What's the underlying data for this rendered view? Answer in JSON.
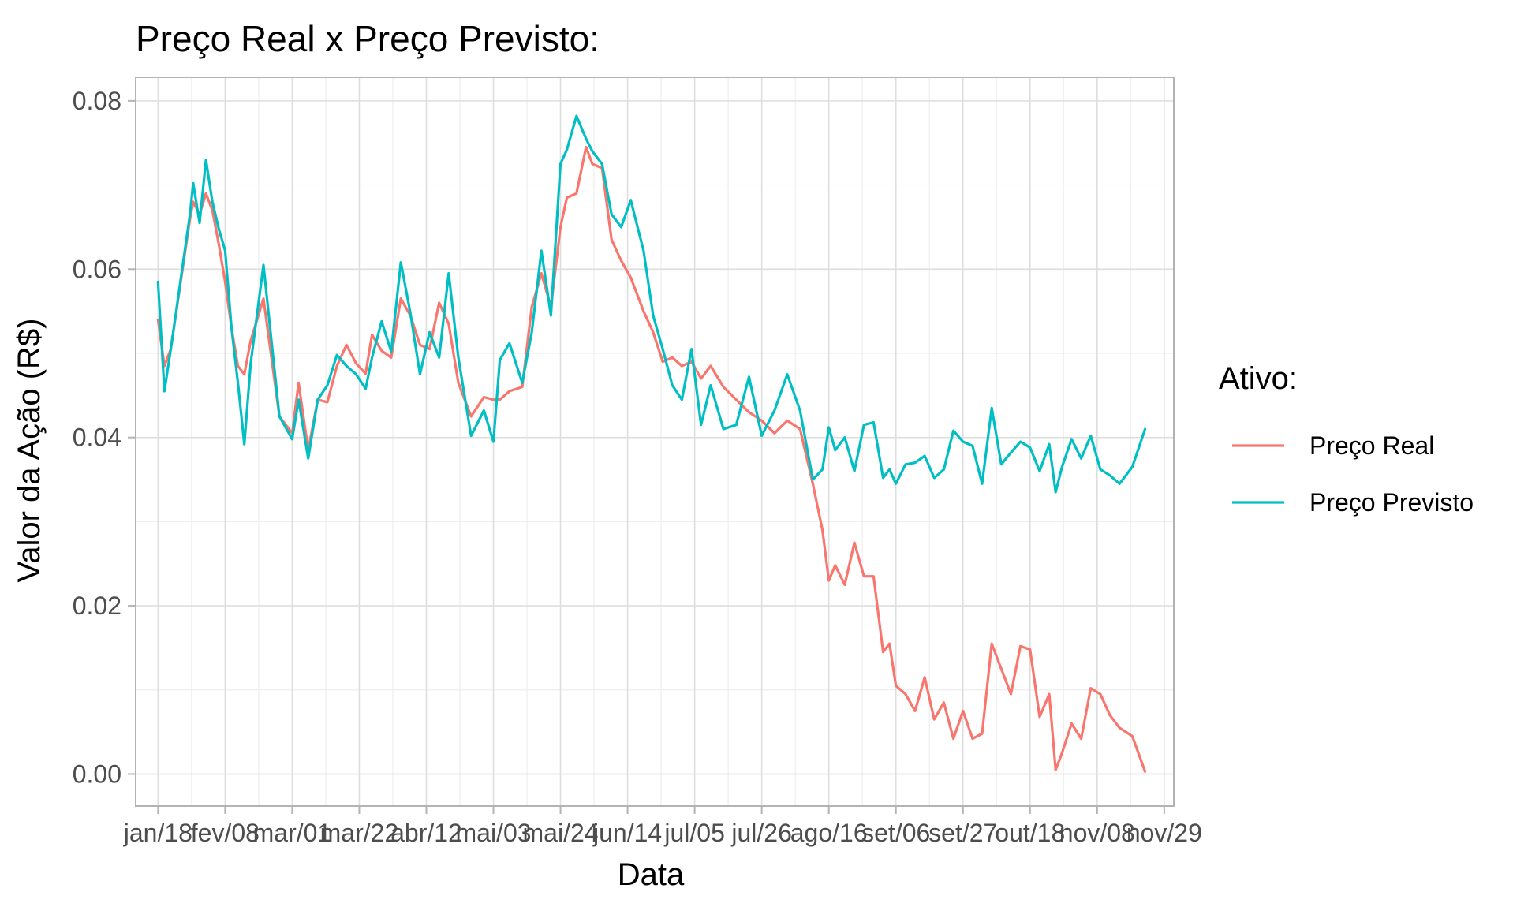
{
  "chart_data": {
    "type": "line",
    "title": "Preço Real x Preço Previsto:",
    "xlabel": "Data",
    "ylabel": "Valor da Ação (R$)",
    "x_ticks": [
      "jan/18",
      "fev/08",
      "mar/01",
      "mar/22",
      "abr/12",
      "mai/03",
      "mai/24",
      "jun/14",
      "jul/05",
      "jul/26",
      "ago/16",
      "set/06",
      "set/27",
      "out/18",
      "nov/08",
      "nov/29"
    ],
    "y_ticks": [
      "0.00",
      "0.02",
      "0.04",
      "0.06",
      "0.08"
    ],
    "xlim": [
      "2021-01-11",
      "2021-12-02"
    ],
    "ylim": [
      -0.0038,
      0.0828
    ],
    "grid": true,
    "legend": {
      "title": "Ativo:",
      "position": "right"
    },
    "colors": {
      "real": "#F8766D",
      "previsto": "#00BFC4"
    },
    "x": [
      "2021-01-18",
      "2021-01-20",
      "2021-01-22",
      "2021-01-28",
      "2021-01-29",
      "2021-01-31",
      "2021-02-02",
      "2021-02-03",
      "2021-02-04",
      "2021-02-06",
      "2021-02-08",
      "2021-02-10",
      "2021-02-12",
      "2021-02-14",
      "2021-02-16",
      "2021-02-20",
      "2021-02-25",
      "2021-03-01",
      "2021-03-03",
      "2021-03-06",
      "2021-03-09",
      "2021-03-12",
      "2021-03-15",
      "2021-03-18",
      "2021-03-21",
      "2021-03-24",
      "2021-03-26",
      "2021-03-29",
      "2021-04-01",
      "2021-04-04",
      "2021-04-07",
      "2021-04-10",
      "2021-04-13",
      "2021-04-16",
      "2021-04-19",
      "2021-04-22",
      "2021-04-26",
      "2021-04-30",
      "2021-05-03",
      "2021-05-05",
      "2021-05-08",
      "2021-05-12",
      "2021-05-15",
      "2021-05-18",
      "2021-05-21",
      "2021-05-24",
      "2021-05-26",
      "2021-05-29",
      "2021-06-01",
      "2021-06-03",
      "2021-06-06",
      "2021-06-09",
      "2021-06-12",
      "2021-06-15",
      "2021-06-19",
      "2021-06-22",
      "2021-06-25",
      "2021-06-28",
      "2021-07-01",
      "2021-07-04",
      "2021-07-07",
      "2021-07-10",
      "2021-07-14",
      "2021-07-18",
      "2021-07-22",
      "2021-07-26",
      "2021-07-30",
      "2021-08-03",
      "2021-08-07",
      "2021-08-11",
      "2021-08-14",
      "2021-08-16",
      "2021-08-18",
      "2021-08-21",
      "2021-08-24",
      "2021-08-27",
      "2021-08-30",
      "2021-09-02",
      "2021-09-04",
      "2021-09-06",
      "2021-09-09",
      "2021-09-12",
      "2021-09-15",
      "2021-09-18",
      "2021-09-21",
      "2021-09-24",
      "2021-09-27",
      "2021-09-30",
      "2021-10-03",
      "2021-10-06",
      "2021-10-09",
      "2021-10-12",
      "2021-10-15",
      "2021-10-18",
      "2021-10-21",
      "2021-10-24",
      "2021-10-26",
      "2021-10-28",
      "2021-10-31",
      "2021-11-03",
      "2021-11-06",
      "2021-11-09",
      "2021-11-12",
      "2021-11-15",
      "2021-11-19",
      "2021-11-23"
    ],
    "series": [
      {
        "name": "Preço Real",
        "values": [
          0.054,
          0.0485,
          0.0505,
          0.066,
          0.068,
          0.0665,
          0.069,
          0.068,
          0.067,
          0.063,
          0.0585,
          0.053,
          0.0485,
          0.0475,
          0.0515,
          0.0565,
          0.0425,
          0.0405,
          0.0465,
          0.0385,
          0.0445,
          0.0442,
          0.0485,
          0.051,
          0.0488,
          0.0476,
          0.0522,
          0.0503,
          0.0495,
          0.0565,
          0.0545,
          0.051,
          0.0505,
          0.056,
          0.0535,
          0.0465,
          0.0425,
          0.0448,
          0.0445,
          0.0445,
          0.0455,
          0.046,
          0.0555,
          0.0595,
          0.0555,
          0.065,
          0.0685,
          0.069,
          0.0745,
          0.0725,
          0.072,
          0.0635,
          0.061,
          0.059,
          0.055,
          0.0525,
          0.049,
          0.0495,
          0.0485,
          0.049,
          0.047,
          0.0485,
          0.046,
          0.0445,
          0.043,
          0.042,
          0.0405,
          0.042,
          0.041,
          0.0345,
          0.029,
          0.023,
          0.0248,
          0.0225,
          0.0275,
          0.0235,
          0.0235,
          0.0145,
          0.0155,
          0.0105,
          0.0095,
          0.0075,
          0.0115,
          0.0065,
          0.0085,
          0.0042,
          0.0075,
          0.0042,
          0.0048,
          0.0155,
          0.0125,
          0.0095,
          0.0152,
          0.0148,
          0.0068,
          0.0095,
          0.0005,
          0.0025,
          0.006,
          0.0042,
          0.0102,
          0.0095,
          0.007,
          0.0055,
          0.0045,
          0.0003
        ]
      },
      {
        "name": "Preço Previsto",
        "values": [
          0.0585,
          0.0455,
          0.0505,
          0.0665,
          0.0702,
          0.0655,
          0.073,
          0.0705,
          0.068,
          0.0648,
          0.0622,
          0.053,
          0.0465,
          0.0392,
          0.0488,
          0.0605,
          0.0425,
          0.0398,
          0.0445,
          0.0375,
          0.0445,
          0.0462,
          0.0498,
          0.0485,
          0.0475,
          0.0458,
          0.0495,
          0.0538,
          0.0502,
          0.0608,
          0.0548,
          0.0475,
          0.0525,
          0.0495,
          0.0595,
          0.0495,
          0.0402,
          0.0432,
          0.0395,
          0.0492,
          0.0512,
          0.0465,
          0.0525,
          0.0622,
          0.0545,
          0.0725,
          0.0742,
          0.0782,
          0.0755,
          0.074,
          0.0725,
          0.0665,
          0.065,
          0.0682,
          0.0622,
          0.0545,
          0.0505,
          0.0462,
          0.0445,
          0.0505,
          0.0415,
          0.0462,
          0.041,
          0.0415,
          0.0472,
          0.0402,
          0.0432,
          0.0475,
          0.0432,
          0.035,
          0.0362,
          0.0412,
          0.0385,
          0.04,
          0.036,
          0.0415,
          0.0418,
          0.0352,
          0.0362,
          0.0345,
          0.0368,
          0.037,
          0.0378,
          0.0352,
          0.0362,
          0.0408,
          0.0395,
          0.039,
          0.0345,
          0.0435,
          0.0368,
          0.0382,
          0.0395,
          0.0388,
          0.036,
          0.0392,
          0.0335,
          0.0365,
          0.0398,
          0.0375,
          0.0402,
          0.0362,
          0.0355,
          0.0345,
          0.0365,
          0.041
        ]
      }
    ]
  }
}
